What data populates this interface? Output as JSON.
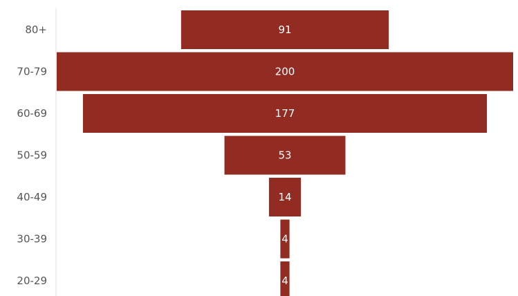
{
  "chart_data": {
    "type": "bar",
    "orientation": "horizontal-centered",
    "title": "",
    "xlabel": "",
    "ylabel": "",
    "categories": [
      "80+",
      "70-79",
      "60-69",
      "50-59",
      "40-49",
      "30-39",
      "20-29"
    ],
    "values": [
      91,
      200,
      177,
      53,
      14,
      4,
      4
    ],
    "value_labels": [
      "91",
      "200",
      "177",
      "53",
      "14",
      "4",
      "4"
    ],
    "xlim": [
      0,
      200
    ],
    "grid": false,
    "legend": "none",
    "colors": {
      "bar": "#922b21",
      "bar_text": "#ffffff",
      "axis_text": "#555555",
      "axis_line": "#dddddd"
    }
  }
}
